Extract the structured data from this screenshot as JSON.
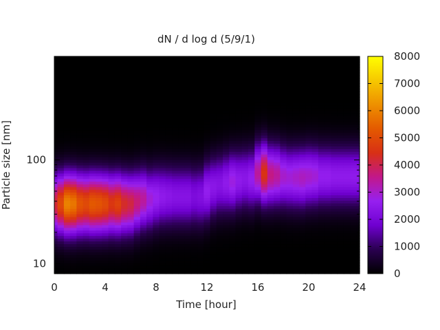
{
  "chart_data": {
    "type": "heatmap",
    "title": "dN / d log d (5/9/1)",
    "xlabel": "Time [hour]",
    "ylabel": "Particle size [nm]",
    "x_ticks": [
      0,
      4,
      8,
      12,
      16,
      20,
      24
    ],
    "xlim": [
      0,
      24
    ],
    "y_scale": "log",
    "y_ticks": [
      10,
      100
    ],
    "ylim": [
      8,
      1000
    ],
    "colorbar": {
      "ticks": [
        0,
        1000,
        2000,
        3000,
        4000,
        5000,
        6000,
        7000,
        8000
      ],
      "range": [
        0,
        8000
      ],
      "colors": [
        "#000000",
        "#2a0050",
        "#6f00d0",
        "#9620f0",
        "#c2188a",
        "#d83015",
        "#e45a00",
        "#ee9000",
        "#f6c800",
        "#ffff00"
      ]
    },
    "time_hours": [
      0,
      0.5,
      1,
      1.5,
      2,
      2.5,
      3,
      3.5,
      4,
      4.5,
      5,
      5.5,
      6,
      6.5,
      7,
      7.5,
      8,
      8.5,
      9,
      9.5,
      10,
      10.5,
      11,
      11.5,
      12,
      12.5,
      13,
      13.5,
      14,
      14.5,
      15,
      15.5,
      16,
      16.5,
      17,
      17.5,
      18,
      18.5,
      19,
      19.5,
      20,
      20.5,
      21,
      21.5,
      22,
      22.5,
      23,
      23.5,
      24
    ],
    "size_bins_nm": [
      10,
      15,
      20,
      30,
      40,
      60,
      80,
      100,
      150,
      200,
      300,
      500,
      800
    ],
    "peak_diameter_nm": [
      38,
      38,
      38,
      38,
      38,
      38,
      38,
      38,
      38,
      38,
      38,
      38,
      38,
      40,
      42,
      42,
      44,
      45,
      45,
      45,
      45,
      45,
      45,
      45,
      50,
      55,
      58,
      60,
      62,
      64,
      66,
      66,
      75,
      75,
      72,
      72,
      70,
      68,
      68,
      68,
      70,
      70,
      70,
      70,
      70,
      70,
      70,
      70,
      70
    ],
    "peak_value": [
      4200,
      5000,
      6000,
      5800,
      5200,
      5000,
      5300,
      5200,
      5000,
      4600,
      4800,
      4300,
      4100,
      3700,
      3400,
      2900,
      2700,
      2500,
      2400,
      2300,
      2300,
      2300,
      2100,
      2200,
      2600,
      2400,
      2300,
      2500,
      2800,
      2500,
      2400,
      2600,
      3400,
      4500,
      3600,
      3400,
      3000,
      2900,
      3000,
      3100,
      3000,
      2900,
      2600,
      2600,
      2500,
      2500,
      2500,
      2500,
      2500
    ]
  }
}
